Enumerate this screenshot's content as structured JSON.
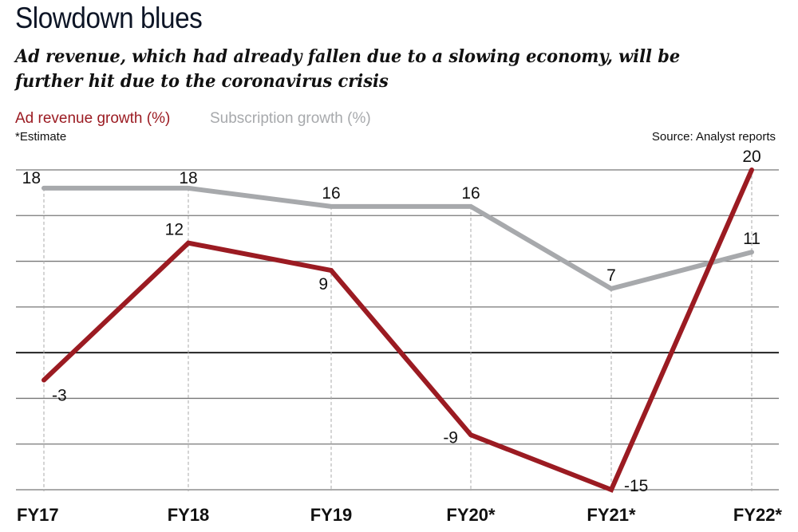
{
  "header": {
    "title": "Slowdown blues",
    "subtitle": "Ad revenue, which had already fallen due to a slowing economy, will be further hit due to the coronavirus crisis",
    "note": "*Estimate",
    "source": "Source: Analyst reports"
  },
  "chart_data": {
    "type": "line",
    "title": "Slowdown blues",
    "subtitle": "Ad revenue, which had already fallen due to a slowing economy, will be further hit due to the coronavirus crisis",
    "xlabel": "",
    "ylabel": "",
    "categories": [
      "FY17",
      "FY18",
      "FY19",
      "FY20*",
      "FY21*",
      "FY22*"
    ],
    "ylim": [
      -15,
      20
    ],
    "yticks": [
      -15,
      -10,
      -5,
      0,
      5,
      10,
      15,
      20
    ],
    "ytick_labels_shown": false,
    "grid": true,
    "legend_placement": "top-left",
    "series": [
      {
        "name": "Ad revenue growth (%)",
        "color": "#9b1b22",
        "values": [
          -3,
          12,
          9,
          -9,
          -15,
          20
        ],
        "labels": [
          "-3",
          "12",
          "9",
          "-9",
          "-15",
          "20"
        ]
      },
      {
        "name": "Subscription growth (%)",
        "color": "#a7a9ac",
        "values": [
          18,
          18,
          16,
          16,
          7,
          11
        ],
        "labels": [
          "18",
          "18",
          "16",
          "16",
          "7",
          "11"
        ]
      }
    ],
    "annotations": [
      "*Estimate",
      "Source: Analyst reports"
    ]
  }
}
